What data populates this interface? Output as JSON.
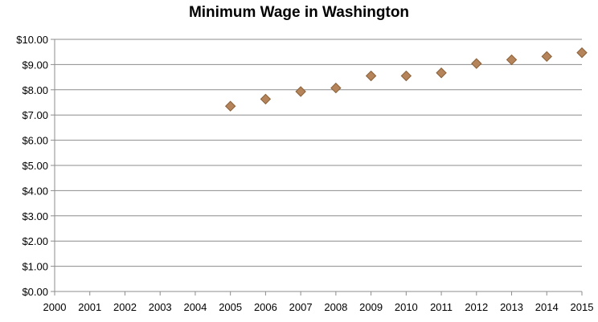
{
  "chart_data": {
    "type": "scatter",
    "title": "Minimum Wage in Washington",
    "xlabel": "",
    "ylabel": "",
    "x": [
      2005,
      2006,
      2007,
      2008,
      2009,
      2010,
      2011,
      2012,
      2013,
      2014,
      2015
    ],
    "y": [
      7.35,
      7.63,
      7.93,
      8.07,
      8.55,
      8.55,
      8.67,
      9.04,
      9.19,
      9.32,
      9.47
    ],
    "xlim": [
      2000,
      2015
    ],
    "ylim": [
      0,
      10
    ],
    "x_ticks": [
      2000,
      2001,
      2002,
      2003,
      2004,
      2005,
      2006,
      2007,
      2008,
      2009,
      2010,
      2011,
      2012,
      2013,
      2014,
      2015
    ],
    "x_tick_labels": [
      "2000",
      "2001",
      "2002",
      "2003",
      "2004",
      "2005",
      "2006",
      "2007",
      "2008",
      "2009",
      "2010",
      "2011",
      "2012",
      "2013",
      "2014",
      "2015"
    ],
    "y_ticks": [
      0,
      1,
      2,
      3,
      4,
      5,
      6,
      7,
      8,
      9,
      10
    ],
    "y_tick_labels": [
      "$0.00",
      "$1.00",
      "$2.00",
      "$3.00",
      "$4.00",
      "$5.00",
      "$6.00",
      "$7.00",
      "$8.00",
      "$9.00",
      "$10.00"
    ],
    "grid": true,
    "legend": "none",
    "marker": "diamond",
    "colors": {
      "marker": "#b5845a",
      "marker_edge": "#8a6038",
      "gridline": "#8c8c8c",
      "axis": "#8c8c8c"
    }
  }
}
